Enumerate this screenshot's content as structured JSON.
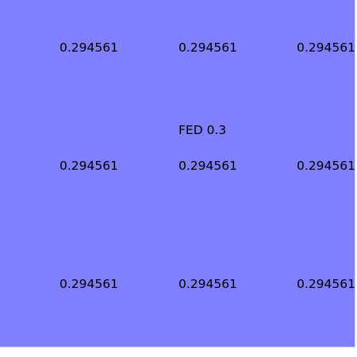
{
  "canvas": {
    "background": "#8080ff",
    "title": "FED 0.3",
    "grid_values": [
      [
        "0.294561",
        "0.294561",
        "0.294561"
      ],
      [
        "0.294561",
        "0.294561",
        "0.294561"
      ],
      [
        "0.294561",
        "0.294561",
        "0.294561"
      ]
    ]
  }
}
